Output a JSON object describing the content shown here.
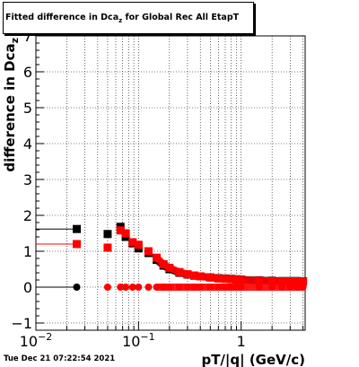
{
  "chart_data": {
    "type": "scatter",
    "title_main": "Fitted difference in Dca",
    "title_sub": "z",
    "title_tail": " for Global Rec All EtapT",
    "xlabel": "pT/|q| (GeV/c)",
    "ylabel_main": "difference in Dca",
    "ylabel_sub": "z",
    "x_scale": "log",
    "xlim": [
      0.01,
      4.2
    ],
    "ylim": [
      -1.2,
      7.0
    ],
    "y_ticks": [
      -1,
      0,
      1,
      2,
      3,
      4,
      5,
      6,
      7
    ],
    "y_tick_labels": [
      "−1",
      "0",
      "1",
      "2",
      "3",
      "4",
      "5",
      "6",
      "7"
    ],
    "x_major_ticks": [
      0.01,
      0.1,
      1
    ],
    "grid": true,
    "series": [
      {
        "color": "#000000",
        "marker": "square",
        "x": [
          0.025,
          0.05,
          0.0667,
          0.075,
          0.0875,
          0.1,
          0.125,
          0.15,
          0.175,
          0.2,
          0.25,
          0.3,
          0.35,
          0.4,
          0.5,
          0.6,
          0.7,
          0.8,
          0.9,
          1.0,
          1.5,
          2.0,
          2.5,
          3.0,
          3.5,
          4.0
        ],
        "y": [
          1.62,
          1.48,
          1.68,
          1.4,
          1.22,
          1.08,
          0.95,
          0.76,
          0.6,
          0.5,
          0.4,
          0.35,
          0.32,
          0.3,
          0.27,
          0.25,
          0.24,
          0.23,
          0.22,
          0.21,
          0.19,
          0.18,
          0.17,
          0.17,
          0.17,
          0.16
        ],
        "xerr_low": [
          0.01
        ],
        "xerr_high": [
          0.025
        ]
      },
      {
        "color": "#ff0000",
        "marker": "square",
        "x": [
          0.025,
          0.05,
          0.0667,
          0.075,
          0.0875,
          0.1,
          0.125,
          0.15,
          0.175,
          0.2,
          0.25,
          0.3,
          0.35,
          0.4,
          0.5,
          0.6,
          0.7,
          0.8,
          0.9,
          1.0,
          1.5,
          2.0,
          2.5,
          3.0,
          3.5,
          4.0
        ],
        "y": [
          1.2,
          1.1,
          1.58,
          1.5,
          1.25,
          1.18,
          1.0,
          0.82,
          0.64,
          0.54,
          0.42,
          0.36,
          0.32,
          0.3,
          0.27,
          0.24,
          0.23,
          0.22,
          0.21,
          0.2,
          0.18,
          0.17,
          0.16,
          0.16,
          0.16,
          0.15
        ],
        "xerr_low": [
          0.01
        ],
        "xerr_high": [
          0.025
        ]
      },
      {
        "color": "#000000",
        "marker": "circle",
        "x": [
          0.025
        ],
        "y": [
          0.0
        ],
        "xerr_low": [
          0.01
        ],
        "xerr_high": [
          0.025
        ]
      },
      {
        "color": "#ff0000",
        "marker": "circle",
        "x": [
          0.05,
          0.0667,
          0.075,
          0.0875,
          0.1,
          0.125,
          0.15,
          0.175,
          0.2,
          0.25,
          0.3,
          0.35,
          0.4,
          0.5,
          0.6,
          0.7,
          0.8,
          0.9,
          1.0,
          1.5,
          2.0,
          2.5,
          3.0,
          3.5,
          4.0
        ],
        "y": [
          0,
          0,
          0,
          0,
          0,
          0,
          0,
          0,
          0,
          0,
          0,
          0,
          0,
          0,
          0,
          0,
          0,
          0,
          0,
          0,
          0,
          0,
          0,
          0,
          0
        ]
      }
    ]
  },
  "footer": {
    "timestamp": "Tue Dec 21 07:22:54 2021"
  }
}
